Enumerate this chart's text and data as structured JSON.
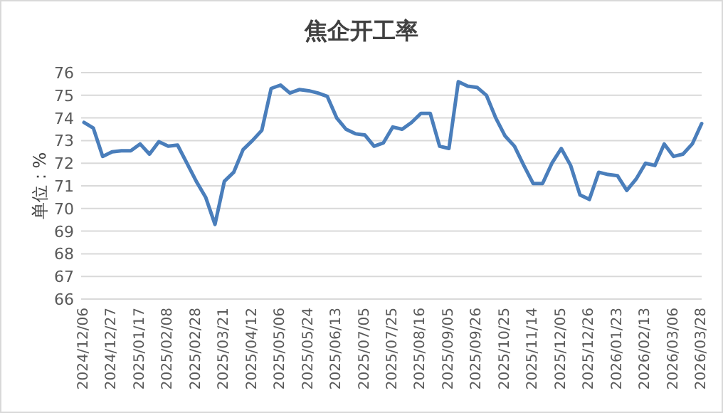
{
  "chart_data": {
    "type": "line",
    "title": "焦企开工率",
    "ylabel": "单位：%",
    "categories": [
      "2024/12/06",
      null,
      null,
      "2024/12/27",
      null,
      null,
      "2025/01/17",
      null,
      null,
      "2025/02/08",
      null,
      null,
      "2025/02/28",
      null,
      null,
      "2025/03/21",
      null,
      null,
      "2025/04/12",
      null,
      null,
      "2025/05/06",
      null,
      null,
      "2025/05/24",
      null,
      null,
      "2025/06/13",
      null,
      null,
      "2025/07/05",
      null,
      null,
      "2025/07/25",
      null,
      null,
      "2025/08/16",
      null,
      null,
      "2025/09/05",
      null,
      null,
      "2025/09/26",
      null,
      null,
      "2025/10/25",
      null,
      null,
      "2025/11/14",
      null,
      null,
      "2025/12/05",
      null,
      null,
      "2025/12/26",
      null,
      null,
      "2026/01/23",
      null,
      null,
      "2026/02/13",
      null,
      null,
      "2026/03/06",
      null,
      null,
      "2026/03/28"
    ],
    "series": [
      {
        "color": "#4a7ebb",
        "values": [
          73.8,
          73.55,
          72.3,
          72.5,
          72.55,
          72.55,
          72.85,
          72.4,
          72.95,
          72.75,
          72.8,
          72.0,
          71.2,
          70.5,
          69.3,
          71.2,
          71.6,
          72.6,
          73.0,
          73.45,
          75.3,
          75.45,
          75.1,
          75.25,
          75.2,
          75.1,
          74.95,
          74.0,
          73.5,
          73.3,
          73.25,
          72.75,
          72.9,
          73.6,
          73.5,
          73.8,
          74.2,
          74.2,
          72.75,
          72.65,
          75.6,
          75.4,
          75.35,
          75.0,
          74.0,
          73.2,
          72.75,
          71.9,
          71.1,
          71.1,
          72.0,
          72.65,
          71.9,
          70.6,
          70.4,
          71.6,
          71.5,
          71.45,
          70.8,
          71.3,
          72.0,
          71.9,
          72.85,
          72.3,
          72.4,
          72.85,
          73.75
        ]
      }
    ],
    "ylim": [
      66,
      76
    ],
    "yticks": [
      66,
      67,
      68,
      69,
      70,
      71,
      72,
      73,
      74,
      75,
      76
    ],
    "grid": "y",
    "marker": "none",
    "line_style": "solid"
  }
}
